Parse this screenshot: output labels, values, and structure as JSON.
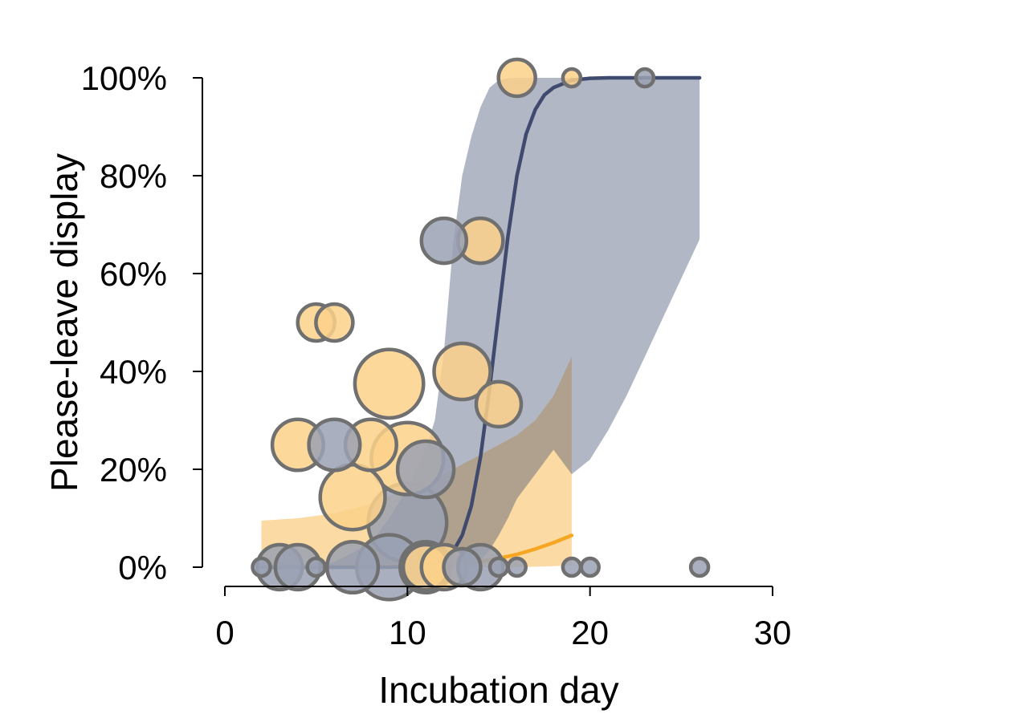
{
  "chart_data": {
    "type": "scatter",
    "title": "",
    "xlabel": "Incubation day",
    "ylabel": "Please-leave display",
    "xlim": [
      0,
      30
    ],
    "ylim": [
      0,
      1
    ],
    "xticks": [
      0,
      10,
      20,
      30
    ],
    "yticks": [
      0,
      0.2,
      0.4,
      0.6,
      0.8,
      1.0
    ],
    "xtick_labels": [
      "0",
      "10",
      "20",
      "30"
    ],
    "ytick_labels": [
      "0%",
      "20%",
      "40%",
      "60%",
      "80%",
      "100%"
    ],
    "grid": false,
    "legend": "none",
    "series": [
      {
        "color": "#F5A623",
        "point_fill": "#FBD18A",
        "fit": {
          "x": [
            2,
            4,
            6,
            8,
            10,
            12,
            14,
            15,
            16,
            17,
            18,
            19
          ],
          "y": [
            0.0,
            0.0,
            0.0,
            0.001,
            0.002,
            0.005,
            0.012,
            0.018,
            0.026,
            0.037,
            0.05,
            0.065
          ]
        },
        "band": {
          "x": [
            2,
            4,
            6,
            8,
            10,
            11,
            12,
            13,
            14,
            15,
            16,
            17,
            18,
            19
          ],
          "lower": [
            0.0,
            0.0,
            0.0,
            0.0,
            0.0,
            0.0,
            0.0,
            0.0,
            0.0,
            0.0,
            0.0,
            0.001,
            0.002,
            0.004
          ],
          "upper": [
            0.095,
            0.1,
            0.11,
            0.13,
            0.16,
            0.18,
            0.19,
            0.21,
            0.23,
            0.25,
            0.27,
            0.3,
            0.35,
            0.43
          ]
        },
        "points": [
          {
            "x": 4,
            "y": 0.25,
            "n": 4
          },
          {
            "x": 5,
            "y": 0.5,
            "n": 2
          },
          {
            "x": 6,
            "y": 0.5,
            "n": 2
          },
          {
            "x": 7,
            "y": 0.143,
            "n": 7
          },
          {
            "x": 8,
            "y": 0.25,
            "n": 4
          },
          {
            "x": 9,
            "y": 0.375,
            "n": 8
          },
          {
            "x": 10,
            "y": 0.222,
            "n": 9
          },
          {
            "x": 11,
            "y": 0.0,
            "n": 3
          },
          {
            "x": 12,
            "y": 0.0,
            "n": 3
          },
          {
            "x": 13,
            "y": 0.4,
            "n": 5
          },
          {
            "x": 14,
            "y": 0.667,
            "n": 3
          },
          {
            "x": 15,
            "y": 0.333,
            "n": 3
          },
          {
            "x": 16,
            "y": 1.0,
            "n": 2
          },
          {
            "x": 19,
            "y": 1.0,
            "n": 1
          }
        ]
      },
      {
        "color": "#3F4A6E",
        "point_fill": "#9AA1B3",
        "fit": {
          "x": [
            2,
            4,
            6,
            8,
            9,
            10,
            11,
            11.5,
            12,
            12.5,
            13,
            13.5,
            14,
            14.5,
            15,
            15.5,
            16,
            16.5,
            17,
            17.5,
            18,
            19,
            20,
            21,
            22,
            23,
            24,
            26
          ],
          "y": [
            0.0,
            0.0,
            0.0,
            0.0,
            0.0,
            0.001,
            0.004,
            0.008,
            0.016,
            0.032,
            0.065,
            0.125,
            0.225,
            0.365,
            0.52,
            0.675,
            0.8,
            0.885,
            0.935,
            0.965,
            0.98,
            0.995,
            0.999,
            1.0,
            1.0,
            1.0,
            1.0,
            1.0
          ]
        },
        "band": {
          "x": [
            2,
            4,
            6,
            8,
            9,
            10,
            11,
            11.5,
            12,
            12.5,
            13,
            13.5,
            14,
            14.5,
            15,
            15.5,
            16,
            17,
            18,
            19,
            20,
            21,
            22,
            23,
            24,
            25,
            26
          ],
          "lower": [
            0.0,
            0.0,
            0.0,
            0.0,
            0.0,
            0.0,
            0.0,
            0.0,
            0.0,
            0.0,
            0.002,
            0.006,
            0.015,
            0.035,
            0.065,
            0.1,
            0.14,
            0.19,
            0.24,
            0.19,
            0.22,
            0.28,
            0.35,
            0.43,
            0.51,
            0.59,
            0.67
          ],
          "upper": [
            0.0,
            0.0,
            0.01,
            0.05,
            0.1,
            0.16,
            0.24,
            0.3,
            0.44,
            0.66,
            0.8,
            0.88,
            0.94,
            0.98,
            0.995,
            0.999,
            1.0,
            1.0,
            1.0,
            1.0,
            1.0,
            1.0,
            1.0,
            1.0,
            1.0,
            1.0,
            1.0
          ]
        },
        "points": [
          {
            "x": 2,
            "y": 0.0,
            "n": 1
          },
          {
            "x": 3,
            "y": 0.0,
            "n": 3
          },
          {
            "x": 4,
            "y": 0.0,
            "n": 3
          },
          {
            "x": 5,
            "y": 0.0,
            "n": 1
          },
          {
            "x": 6,
            "y": 0.25,
            "n": 4
          },
          {
            "x": 7,
            "y": 0.0,
            "n": 4
          },
          {
            "x": 9,
            "y": 0.0,
            "n": 7
          },
          {
            "x": 10,
            "y": 0.091,
            "n": 11
          },
          {
            "x": 11,
            "y": 0.2,
            "n": 5
          },
          {
            "x": 11,
            "y": 0.0,
            "n": 4
          },
          {
            "x": 12,
            "y": 0.667,
            "n": 3
          },
          {
            "x": 13,
            "y": 0.0,
            "n": 2
          },
          {
            "x": 14,
            "y": 0.0,
            "n": 3
          },
          {
            "x": 15,
            "y": 0.0,
            "n": 1
          },
          {
            "x": 16,
            "y": 0.0,
            "n": 1
          },
          {
            "x": 19,
            "y": 0.0,
            "n": 1
          },
          {
            "x": 20,
            "y": 0.0,
            "n": 1
          },
          {
            "x": 23,
            "y": 1.0,
            "n": 1
          },
          {
            "x": 26,
            "y": 0.0,
            "n": 1
          }
        ]
      }
    ]
  },
  "colors": {
    "point_outline": "#707070",
    "axis": "#000000"
  }
}
